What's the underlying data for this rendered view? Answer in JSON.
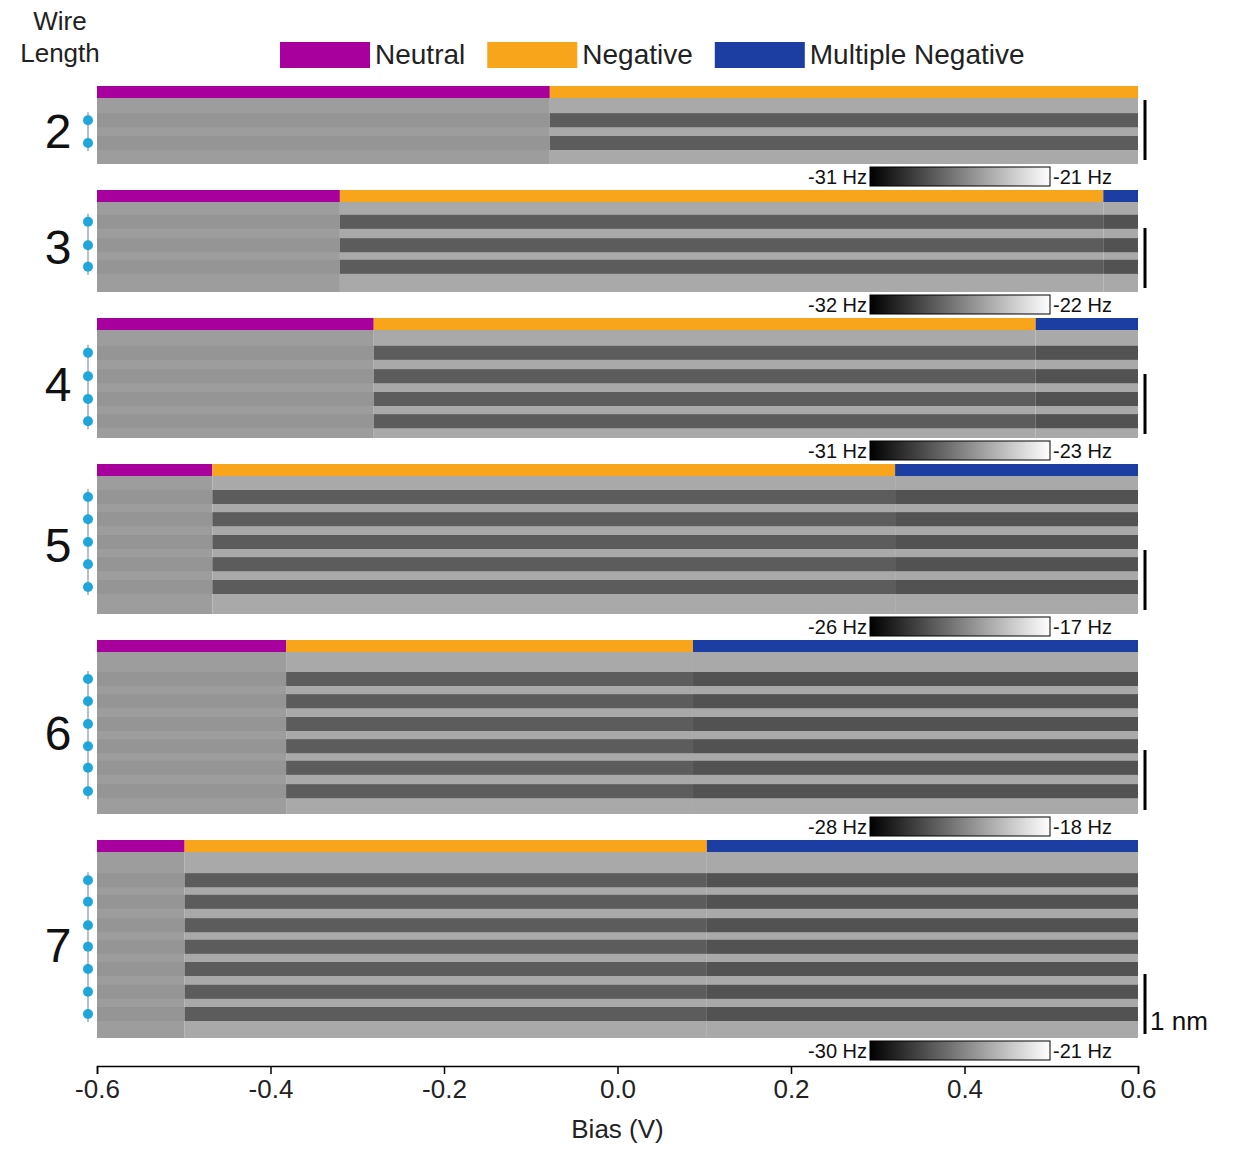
{
  "chart_data": {
    "type": "state_map",
    "row_header": "Wire Length",
    "x_label": "Bias (V)",
    "xlim": [
      -0.6,
      0.6
    ],
    "xticks": [
      -0.6,
      -0.4,
      -0.2,
      {
        "value": 0,
        "label": "0.0"
      },
      0.2,
      0.4,
      0.6
    ],
    "legend": "top",
    "states": [
      {
        "name": "Neutral",
        "color": "#a8009c"
      },
      {
        "name": "Negative",
        "color": "#f8a51c"
      },
      {
        "name": "Multiple Negative",
        "color": "#1c3ea2"
      }
    ],
    "scale_bar": {
      "value": 1,
      "label": "1 nm"
    },
    "panels": [
      {
        "length": 2,
        "height_nm": 1.1,
        "atoms_nm": [
          0.37,
          0.75
        ],
        "segments": [
          {
            "state": 0,
            "start": -0.6,
            "end": -0.078
          },
          {
            "state": 1,
            "start": -0.078,
            "end": 0.6
          }
        ],
        "colorbar_range": [
          -31,
          -21
        ],
        "colorbar_ticks": [
          {
            "value": -31,
            "label": "-31 Hz"
          },
          {
            "value": -21,
            "label": "-21 Hz"
          }
        ]
      },
      {
        "length": 3,
        "height_nm": 1.5,
        "atoms_nm": [
          0.33,
          0.72,
          1.08
        ],
        "segments": [
          {
            "state": 0,
            "start": -0.6,
            "end": -0.32
          },
          {
            "state": 1,
            "start": -0.32,
            "end": 0.56
          },
          {
            "state": 2,
            "start": 0.56,
            "end": 0.6
          }
        ],
        "colorbar_range": [
          -32,
          -22
        ],
        "colorbar_ticks": [
          {
            "value": -32,
            "label": "-32 Hz"
          },
          {
            "value": -22,
            "label": "-22 Hz"
          }
        ]
      },
      {
        "length": 4,
        "height_nm": 1.8,
        "atoms_nm": [
          0.38,
          0.77,
          1.15,
          1.52
        ],
        "segments": [
          {
            "state": 0,
            "start": -0.6,
            "end": -0.281
          },
          {
            "state": 1,
            "start": -0.281,
            "end": 0.482
          },
          {
            "state": 2,
            "start": 0.482,
            "end": 0.6
          }
        ],
        "colorbar_range": [
          -31,
          -23
        ],
        "colorbar_ticks": [
          {
            "value": -31,
            "label": "-31 Hz"
          },
          {
            "value": -23,
            "label": "-23 Hz"
          }
        ]
      },
      {
        "length": 5,
        "height_nm": 2.3,
        "atoms_nm": [
          0.35,
          0.72,
          1.1,
          1.47,
          1.85
        ],
        "segments": [
          {
            "state": 0,
            "start": -0.6,
            "end": -0.467
          },
          {
            "state": 1,
            "start": -0.467,
            "end": 0.32
          },
          {
            "state": 2,
            "start": 0.32,
            "end": 0.6
          }
        ],
        "colorbar_range": [
          -26,
          -17
        ],
        "colorbar_ticks": [
          {
            "value": -26,
            "label": "-26 Hz"
          },
          {
            "value": -17,
            "label": "-17 Hz"
          }
        ]
      },
      {
        "length": 6,
        "height_nm": 2.7,
        "atoms_nm": [
          0.45,
          0.82,
          1.2,
          1.57,
          1.93,
          2.32
        ],
        "segments": [
          {
            "state": 0,
            "start": -0.6,
            "end": -0.382
          },
          {
            "state": 1,
            "start": -0.382,
            "end": 0.087
          },
          {
            "state": 2,
            "start": 0.087,
            "end": 0.6
          }
        ],
        "colorbar_range": [
          -28,
          -18
        ],
        "colorbar_ticks": [
          {
            "value": -28,
            "label": "-28 Hz"
          },
          {
            "value": -18,
            "label": "-18 Hz"
          }
        ]
      },
      {
        "length": 7,
        "height_nm": 3.1,
        "atoms_nm": [
          0.47,
          0.83,
          1.22,
          1.58,
          1.95,
          2.33,
          2.7
        ],
        "segments": [
          {
            "state": 0,
            "start": -0.6,
            "end": -0.499
          },
          {
            "state": 1,
            "start": -0.499,
            "end": 0.103
          },
          {
            "state": 2,
            "start": 0.103,
            "end": 0.6
          }
        ],
        "colorbar_range": [
          -30,
          -21
        ],
        "colorbar_ticks": [
          {
            "value": -30,
            "label": "-30 Hz"
          },
          {
            "value": -21,
            "label": "-21 Hz"
          }
        ]
      }
    ]
  }
}
